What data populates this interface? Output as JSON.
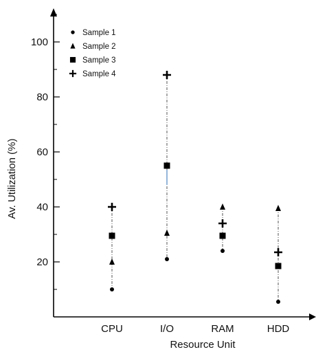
{
  "chart_data": {
    "type": "scatter",
    "title": "",
    "xlabel": "Resource Unit",
    "ylabel": "Av. Utilization (%)",
    "categories": [
      "CPU",
      "I/O",
      "RAM",
      "HDD"
    ],
    "yticks": [
      20,
      40,
      60,
      80,
      100
    ],
    "ylim": [
      0,
      112
    ],
    "grid": false,
    "legend_position": "top-left",
    "series": [
      {
        "name": "Sample 1",
        "marker": "circle",
        "values": [
          10,
          21,
          24,
          5.5
        ]
      },
      {
        "name": "Sample 2",
        "marker": "triangle",
        "values": [
          20,
          30.5,
          40,
          39.5
        ]
      },
      {
        "name": "Sample 3",
        "marker": "square",
        "values": [
          29.5,
          55,
          29.5,
          18.5
        ]
      },
      {
        "name": "Sample 4",
        "marker": "plus",
        "values": [
          40,
          88,
          34,
          23.5
        ]
      }
    ],
    "colors": {
      "marker": "#000000",
      "dashed_line": "#555555",
      "segment_highlight": "#5b8fc7"
    }
  }
}
